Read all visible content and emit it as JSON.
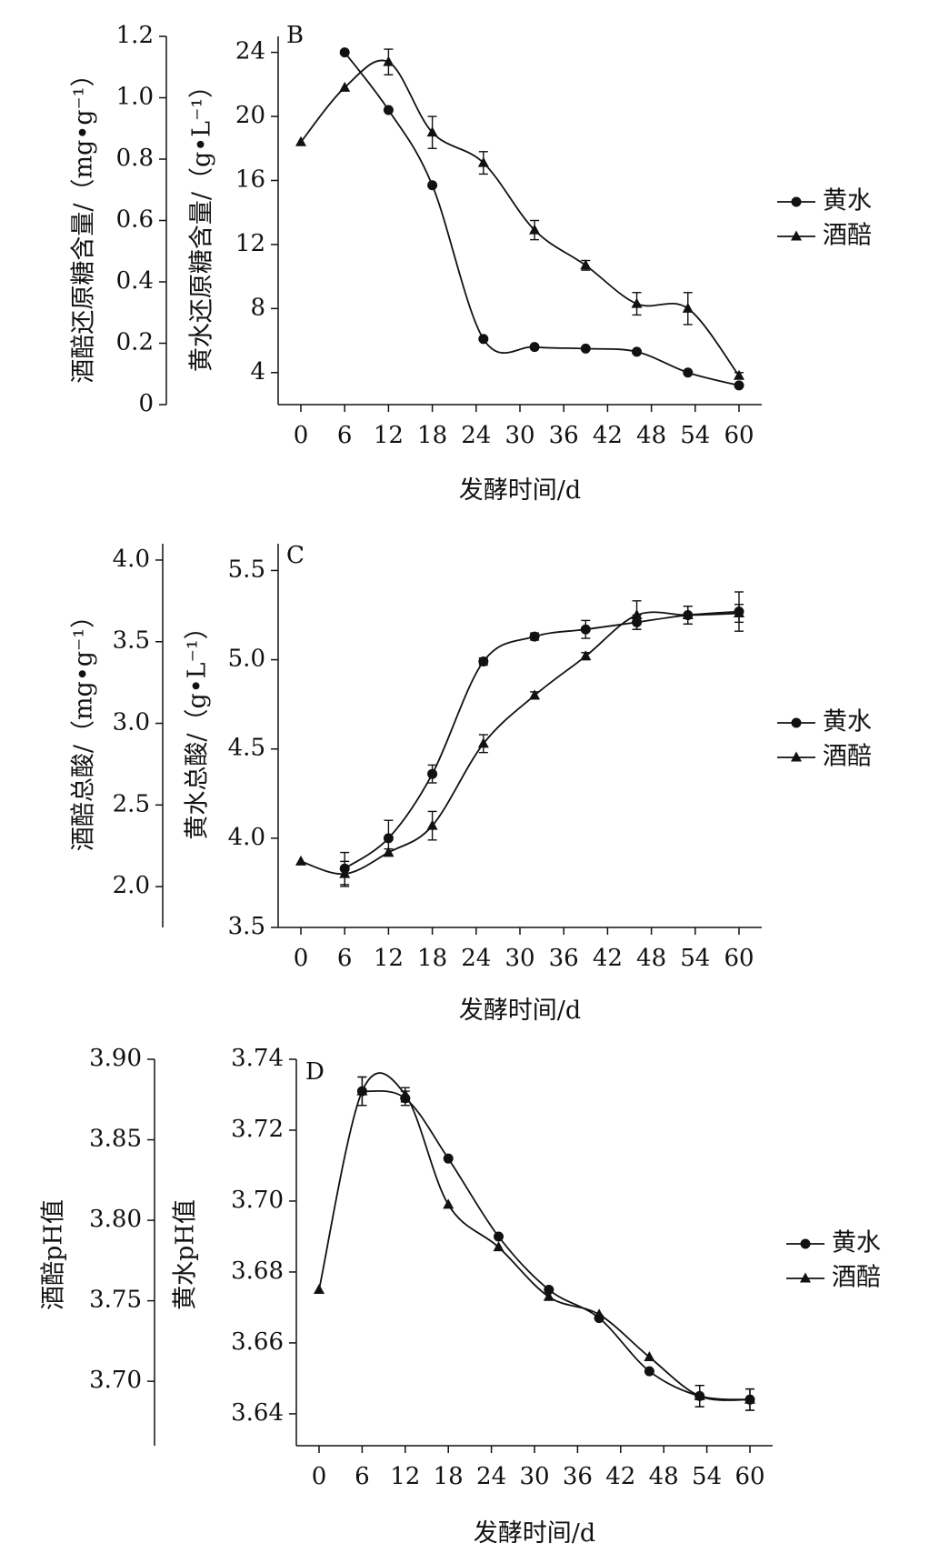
{
  "chart_data": [
    {
      "panel": "B",
      "type": "line",
      "xlabel": "发酵时间/d",
      "x_ticks": [
        0,
        6,
        12,
        18,
        24,
        30,
        36,
        42,
        48,
        54,
        60
      ],
      "xlim": [
        -2,
        63
      ],
      "left_axis": {
        "label": "酒醅还原糖含量/（mg•g⁻¹）",
        "ylim": [
          0,
          1.2
        ],
        "ticks": [
          0,
          0.2,
          0.4,
          0.6,
          0.8,
          1.0,
          1.2
        ],
        "tick_labels": [
          "0",
          "0.2",
          "0.4",
          "0.6",
          "0.8",
          "1.0",
          "1.2"
        ]
      },
      "right_axis": {
        "label": "黄水还原糖含量/（g•L⁻¹）",
        "ylim": [
          2,
          25
        ],
        "ticks": [
          4,
          8,
          12,
          16,
          20,
          24
        ],
        "tick_labels": [
          "4",
          "8",
          "12",
          "16",
          "20",
          "24"
        ]
      },
      "series": [
        {
          "name": "黄水",
          "marker": "circle",
          "axis": "right",
          "x": [
            6,
            12,
            18,
            25,
            32,
            39,
            46,
            53,
            60
          ],
          "values": [
            24.0,
            20.4,
            15.7,
            6.1,
            5.6,
            5.5,
            5.3,
            4.0,
            3.2
          ],
          "errors": [
            0,
            0,
            0,
            0,
            0,
            0,
            0,
            0,
            0
          ]
        },
        {
          "name": "酒醅",
          "marker": "triangle",
          "axis": "right",
          "x": [
            0,
            6,
            12,
            18,
            25,
            32,
            39,
            46,
            53,
            60
          ],
          "values": [
            18.4,
            21.8,
            23.4,
            19.0,
            17.1,
            12.9,
            10.7,
            8.3,
            8.0,
            3.8
          ],
          "errors": [
            0,
            0,
            0.8,
            1.0,
            0.7,
            0.6,
            0.3,
            0.7,
            1.0,
            0.2
          ]
        }
      ]
    },
    {
      "panel": "C",
      "type": "line",
      "xlabel": "发酵时间/d",
      "x_ticks": [
        0,
        6,
        12,
        18,
        24,
        30,
        36,
        42,
        48,
        54,
        60
      ],
      "xlim": [
        -2,
        63
      ],
      "left_axis": {
        "label": "酒醅总酸/（mg•g⁻¹）",
        "ylim": [
          1.75,
          4.1
        ],
        "ticks": [
          2.0,
          2.5,
          3.0,
          3.5,
          4.0
        ],
        "tick_labels": [
          "2.0",
          "2.5",
          "3.0",
          "3.5",
          "4.0"
        ]
      },
      "right_axis": {
        "label": "黄水总酸/（g•L⁻¹）",
        "ylim": [
          3.5,
          5.65
        ],
        "ticks": [
          3.5,
          4.0,
          4.5,
          5.0,
          5.5
        ],
        "tick_labels": [
          "3.5",
          "4.0",
          "4.5",
          "5.0",
          "5.5"
        ]
      },
      "series": [
        {
          "name": "黄水",
          "marker": "circle",
          "axis": "right",
          "x": [
            6,
            12,
            18,
            25,
            32,
            39,
            46,
            53,
            60
          ],
          "values": [
            3.83,
            4.0,
            4.36,
            4.99,
            5.13,
            5.17,
            5.21,
            5.25,
            5.27
          ],
          "errors": [
            0.09,
            0.1,
            0.05,
            0.02,
            0.02,
            0.05,
            0.04,
            0.05,
            0.11
          ]
        },
        {
          "name": "酒醅",
          "marker": "triangle",
          "axis": "right",
          "x": [
            0,
            6,
            12,
            18,
            25,
            32,
            39,
            46,
            53,
            60
          ],
          "values": [
            3.87,
            3.8,
            3.92,
            4.07,
            4.53,
            4.8,
            5.02,
            5.25,
            5.25,
            5.26
          ],
          "errors": [
            0,
            0.07,
            0.02,
            0.08,
            0.05,
            0.02,
            0.02,
            0.08,
            0.05,
            0.05
          ]
        }
      ]
    },
    {
      "panel": "D",
      "type": "line",
      "xlabel": "发酵时间/d",
      "x_ticks": [
        0,
        6,
        12,
        18,
        24,
        30,
        36,
        42,
        48,
        54,
        60
      ],
      "xlim": [
        -2,
        63
      ],
      "left_axis": {
        "label": "酒醅pH值",
        "ylim": [
          3.66,
          3.9
        ],
        "ticks": [
          3.7,
          3.75,
          3.8,
          3.85,
          3.9
        ],
        "tick_labels": [
          "3.70",
          "3.75",
          "3.80",
          "3.85",
          "3.90"
        ]
      },
      "right_axis": {
        "label": "黄水pH值",
        "ylim": [
          3.631,
          3.74
        ],
        "ticks": [
          3.64,
          3.66,
          3.68,
          3.7,
          3.72,
          3.74
        ],
        "tick_labels": [
          "3.64",
          "3.66",
          "3.68",
          "3.70",
          "3.72",
          "3.74"
        ]
      },
      "series": [
        {
          "name": "黄水",
          "marker": "circle",
          "axis": "right",
          "x": [
            6,
            12,
            18,
            25,
            32,
            39,
            46,
            53,
            60
          ],
          "values": [
            3.731,
            3.729,
            3.712,
            3.69,
            3.675,
            3.667,
            3.652,
            3.645,
            3.644
          ],
          "errors": [
            0.004,
            0.002,
            0,
            0,
            0,
            0,
            0,
            0.003,
            0.003
          ]
        },
        {
          "name": "酒醅",
          "marker": "triangle",
          "axis": "right",
          "x": [
            0,
            6,
            12,
            18,
            25,
            32,
            39,
            46,
            53,
            60
          ],
          "values": [
            3.675,
            3.731,
            3.73,
            3.699,
            3.687,
            3.673,
            3.668,
            3.656,
            3.645,
            3.644
          ],
          "errors": [
            0,
            0.004,
            0.002,
            0,
            0,
            0,
            0,
            0,
            0.003,
            0.003
          ]
        }
      ]
    }
  ]
}
